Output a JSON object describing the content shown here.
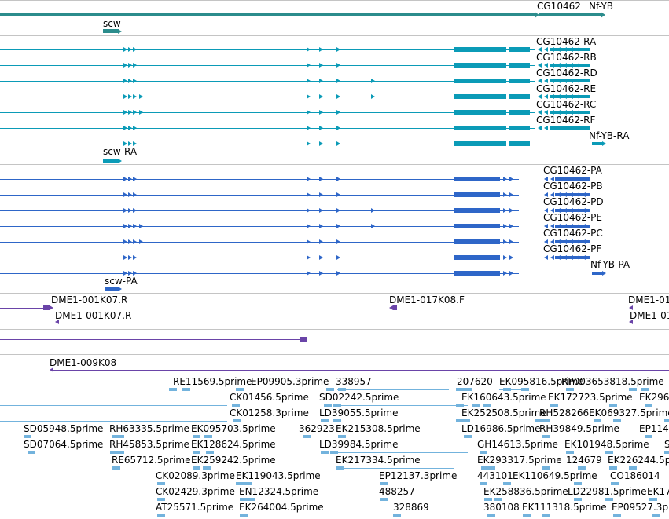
{
  "colors": {
    "gene": "#2b8c8c",
    "transcript": "#0b9bb7",
    "protein": "#2e66c8",
    "clone": "#6a44a8",
    "est": "#73b3dd",
    "divider": "#c4c4c4",
    "text": "#000000"
  },
  "tracks": {
    "genes": {
      "labels": [
        "CG10462",
        "Nf-YB",
        "scw"
      ]
    },
    "transcripts": {
      "labels": [
        "CG10462-RA",
        "CG10462-RB",
        "CG10462-RD",
        "CG10462-RE",
        "CG10462-RC",
        "CG10462-RF",
        "Nf-YB-RA",
        "scw-RA"
      ]
    },
    "proteins": {
      "labels": [
        "CG10462-PA",
        "CG10462-PB",
        "CG10462-PD",
        "CG10462-PE",
        "CG10462-PC",
        "CG10462-PF",
        "Nf-YB-PA",
        "scw-PA"
      ]
    },
    "clones": {
      "labels": [
        "DME1-001K07.R",
        "DME1-017K08.F",
        "DME1-01",
        "DME1-001K07.R",
        "DME1-01"
      ]
    },
    "clones2": {
      "labels": [
        "DME1-009K08"
      ]
    },
    "ests": {
      "labels": [
        "RE11569.5prime",
        "EP09905.3prime",
        "338957",
        "207620",
        "EK095816.5prime",
        "RP003653818.5prime",
        "EK296",
        "CK01456.5prime",
        "SD02242.5prime",
        "EK160643.5prime",
        "EK172723.5prime",
        "EK069327.5prime",
        "CK01258.3prime",
        "LD39055.5prime",
        "EK252508.5prime",
        "RH528266",
        "SD05948.5prime",
        "RH63335.5prime",
        "EK095703.5prime",
        "362923",
        "EK215308.5prime",
        "LD16986.5prime",
        "RH39849.5prime",
        "EP114",
        "SD07064.5prime",
        "RH45853.5prime",
        "EK128624.5prime",
        "LD39984.5prime",
        "GH14613.5prime",
        "EK101948.5prime",
        "S",
        "RE65712.5prime",
        "EK259242.5prime",
        "EK217334.5prime",
        "EK293317.5prime",
        "124679",
        "EK226244.5p",
        "CK02089.3prime",
        "EK119043.5prime",
        "EP12137.3prime",
        "443101",
        "EK110649.5prime",
        "CO186014",
        "CK02429.3prime",
        "EN12324.5prime",
        "488257",
        "EK258836.5prime",
        "LD22981.5prime",
        "EK17",
        "AT25571.5prime",
        "EK264004.5prime",
        "328869",
        "380108",
        "EK111318.5prime",
        "EP09527.3p"
      ]
    }
  }
}
